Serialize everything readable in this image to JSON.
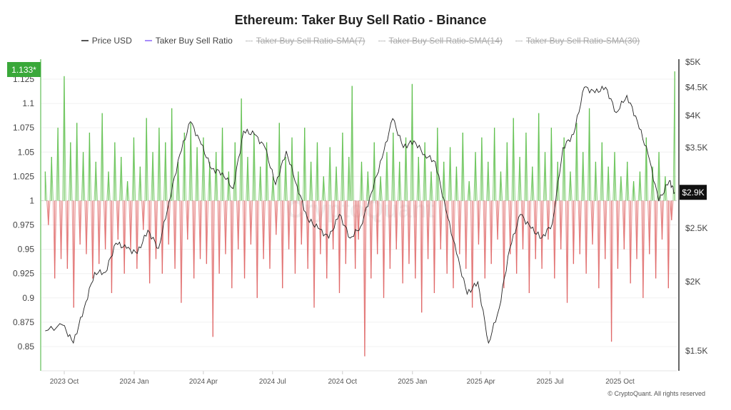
{
  "chart_data": {
    "type": "line",
    "title": "Ethereum: Taker Buy Sell Ratio - Binance",
    "legend": [
      {
        "name": "Price USD",
        "color": "#555555",
        "active": true
      },
      {
        "name": "Taker Buy Sell Ratio",
        "color": "#a78bfa",
        "active": true
      },
      {
        "name": "Taker Buy Sell Ratio-SMA(7)",
        "active": false
      },
      {
        "name": "Taker Buy Sell Ratio-SMA(14)",
        "active": false
      },
      {
        "name": "Taker Buy Sell Ratio-SMA(30)",
        "active": false
      }
    ],
    "legend_position": "top",
    "grid": true,
    "colors": {
      "above": "#5cbf4a",
      "below": "#e06666",
      "price": "#222222",
      "left_highlight": "#3aa83a"
    },
    "x_tick_labels": [
      "2023 Oct",
      "2024 Jan",
      "2024 Apr",
      "2024 Jul",
      "2024 Oct",
      "2025 Jan",
      "2025 Apr",
      "2025 Jul",
      "2025 Oct"
    ],
    "x_tick_dates": [
      "2023-10-01",
      "2024-01-01",
      "2024-04-01",
      "2024-07-01",
      "2024-10-01",
      "2025-01-01",
      "2025-04-01",
      "2025-07-01",
      "2025-10-01"
    ],
    "x_range": [
      "2023-09-05",
      "2025-12-13"
    ],
    "left_axis": {
      "ticks": [
        1.125,
        1.1,
        1.075,
        1.05,
        1.025,
        1,
        0.975,
        0.95,
        0.925,
        0.9,
        0.875,
        0.85
      ],
      "tick_labels": [
        "1.125",
        "1.1",
        "1.075",
        "1.05",
        "1.025",
        "1",
        "0.975",
        "0.95",
        "0.925",
        "0.9",
        "0.875",
        "0.85"
      ],
      "range": [
        0.82,
        1.16
      ],
      "current_label": "1.133*"
    },
    "right_axis": {
      "scale": "log",
      "ticks": [
        5000,
        4500,
        4000,
        3500,
        2500,
        2000,
        1500
      ],
      "tick_labels": [
        "$5K",
        "$4.5K",
        "$4K",
        "$3.5K",
        "$2.5K",
        "$2K",
        "$1.5K"
      ],
      "range": [
        1370,
        5000
      ],
      "current_label": "$2.9K",
      "current_value": 2900
    },
    "ratio": {
      "name": "Taker Buy Sell Ratio",
      "baseline": 1,
      "x_start": "2023-09-06",
      "x_end": "2025-12-12",
      "values": [
        1.03,
        0.975,
        1.045,
        0.92,
        1.075,
        0.94,
        1.128,
        0.93,
        1.06,
        0.89,
        1.08,
        0.955,
        1.05,
        0.945,
        1.07,
        0.92,
        1.04,
        0.935,
        1.09,
        0.95,
        1.03,
        0.905,
        1.06,
        0.96,
        1.045,
        0.925,
        1.02,
        0.95,
        1.065,
        0.93,
        1.035,
        0.97,
        1.085,
        0.915,
        1.05,
        0.94,
        1.075,
        0.925,
        1.06,
        0.955,
        1.095,
        0.93,
        1.04,
        0.895,
        1.07,
        0.96,
        1.08,
        0.92,
        1.055,
        0.94,
        1.065,
        0.935,
        1.04,
        0.86,
        1.05,
        0.925,
        1.075,
        0.945,
        1.03,
        0.91,
        1.06,
        0.95,
        1.105,
        0.92,
        1.045,
        0.955,
        1.07,
        0.9,
        1.035,
        0.94,
        1.06,
        0.93,
        1.025,
        0.965,
        1.08,
        0.91,
        1.045,
        0.95,
        1.065,
        0.925,
        1.03,
        0.955,
        1.075,
        0.93,
        1.04,
        0.89,
        1.06,
        0.945,
        1.025,
        0.92,
        1.055,
        0.95,
        1.035,
        0.905,
        1.07,
        0.935,
        1.045,
        1.118,
        0.93,
        0.96,
        1.04,
        0.84,
        1.03,
        0.92,
        1.06,
        0.945,
        1.025,
        0.9,
        1.05,
        0.93,
        1.07,
        0.95,
        1.04,
        0.915,
        1.065,
        0.935,
        1.12,
        0.92,
        1.045,
        0.885,
        1.06,
        0.94,
        1.03,
        0.905,
        1.075,
        0.95,
        1.04,
        0.925,
        1.055,
        0.91,
        1.035,
        0.945,
        1.07,
        0.93,
        1.02,
        0.89,
        1.05,
        0.955,
        1.065,
        0.92,
        1.04,
        0.935,
        1.075,
        0.96,
        1.03,
        0.91,
        1.06,
        0.945,
        1.085,
        0.925,
        1.045,
        0.95,
        1.07,
        0.905,
        1.035,
        0.94,
        1.09,
        0.93,
        1.05,
        0.96,
        1.075,
        0.92,
        1.04,
        0.95,
        1.065,
        0.895,
        1.03,
        0.935,
        1.08,
        0.945,
        1.05,
        0.925,
        1.095,
        0.955,
        1.04,
        0.91,
        1.06,
        0.94,
        1.035,
        0.855,
        1.05,
        0.93,
        1.025,
        0.95,
        1.04,
        0.915,
        1.02,
        0.94,
        1.03,
        0.9,
        1.065,
        0.945,
        1.035,
        0.92,
        1.05,
        0.96,
        1.025,
        0.91,
        0.98,
        1.133
      ]
    },
    "price": {
      "name": "Price USD",
      "points": [
        [
          "2023-09-06",
          1630
        ],
        [
          "2023-09-29",
          1670
        ],
        [
          "2023-10-13",
          1550
        ],
        [
          "2023-10-27",
          1790
        ],
        [
          "2023-11-10",
          2080
        ],
        [
          "2023-11-24",
          2080
        ],
        [
          "2023-12-08",
          2350
        ],
        [
          "2023-12-22",
          2300
        ],
        [
          "2024-01-05",
          2250
        ],
        [
          "2024-01-19",
          2480
        ],
        [
          "2024-02-02",
          2300
        ],
        [
          "2024-02-16",
          2800
        ],
        [
          "2024-03-01",
          3400
        ],
        [
          "2024-03-15",
          3900
        ],
        [
          "2024-03-29",
          3550
        ],
        [
          "2024-04-12",
          3200
        ],
        [
          "2024-04-26",
          3150
        ],
        [
          "2024-05-10",
          2950
        ],
        [
          "2024-05-24",
          3750
        ],
        [
          "2024-06-07",
          3700
        ],
        [
          "2024-06-21",
          3500
        ],
        [
          "2024-07-05",
          3000
        ],
        [
          "2024-07-19",
          3450
        ],
        [
          "2024-08-02",
          2990
        ],
        [
          "2024-08-16",
          2600
        ],
        [
          "2024-08-30",
          2500
        ],
        [
          "2024-09-13",
          2400
        ],
        [
          "2024-09-27",
          2650
        ],
        [
          "2024-10-11",
          2400
        ],
        [
          "2024-10-25",
          2520
        ],
        [
          "2024-11-08",
          2900
        ],
        [
          "2024-11-22",
          3350
        ],
        [
          "2024-12-06",
          3950
        ],
        [
          "2024-12-20",
          3500
        ],
        [
          "2025-01-03",
          3600
        ],
        [
          "2025-01-17",
          3400
        ],
        [
          "2025-01-31",
          3300
        ],
        [
          "2025-02-14",
          2700
        ],
        [
          "2025-02-28",
          2250
        ],
        [
          "2025-03-14",
          1900
        ],
        [
          "2025-03-28",
          2000
        ],
        [
          "2025-04-11",
          1550
        ],
        [
          "2025-04-25",
          1790
        ],
        [
          "2025-05-09",
          2300
        ],
        [
          "2025-05-23",
          2650
        ],
        [
          "2025-06-06",
          2500
        ],
        [
          "2025-06-20",
          2400
        ],
        [
          "2025-07-04",
          2550
        ],
        [
          "2025-07-18",
          3500
        ],
        [
          "2025-08-01",
          3700
        ],
        [
          "2025-08-15",
          4500
        ],
        [
          "2025-08-29",
          4400
        ],
        [
          "2025-09-12",
          4500
        ],
        [
          "2025-09-26",
          4050
        ],
        [
          "2025-10-10",
          4350
        ],
        [
          "2025-10-24",
          3900
        ],
        [
          "2025-11-07",
          3400
        ],
        [
          "2025-11-21",
          2800
        ],
        [
          "2025-12-05",
          3050
        ],
        [
          "2025-12-12",
          2900
        ]
      ]
    },
    "watermark": "CryptoQuant"
  },
  "footer": "© CryptoQuant. All rights reserved"
}
